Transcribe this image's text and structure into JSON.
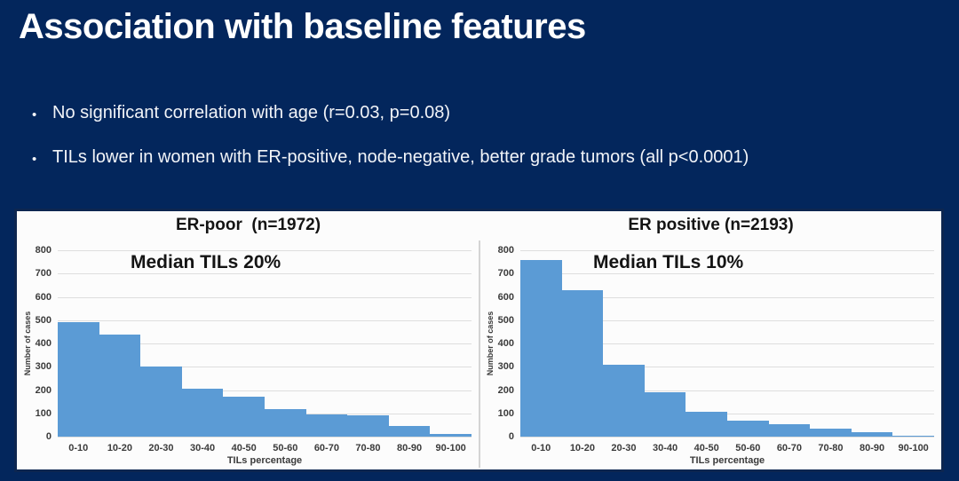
{
  "title": "Association with baseline features",
  "bullets": [
    "No significant correlation with age (r=0.03, p=0.08)",
    "TILs lower in women with ER-positive, node-negative, better grade tumors (all p<0.0001)"
  ],
  "colors": {
    "background": "#03265c",
    "panel_background": "#fcfcfc",
    "bar": "#5b9bd5",
    "gridline": "#dedede",
    "title_text": "#ffffff",
    "chart_text": "#141414"
  },
  "chart_data": [
    {
      "type": "bar",
      "title": "ER-poor  (n=1972)",
      "annotation": "Median TILs 20%",
      "categories": [
        "0-10",
        "10-20",
        "20-30",
        "30-40",
        "40-50",
        "50-60",
        "60-70",
        "70-80",
        "80-90",
        "90-100"
      ],
      "values": [
        490,
        440,
        300,
        205,
        170,
        120,
        95,
        90,
        45,
        10
      ],
      "xlabel": "TILs percentage",
      "ylabel": "Number of cases",
      "ylim": [
        0,
        800
      ],
      "ytick_step": 100,
      "grid": true,
      "legend": "none"
    },
    {
      "type": "bar",
      "title": "ER positive (n=2193)",
      "annotation": "Median TILs 10%",
      "categories": [
        "0-10",
        "10-20",
        "20-30",
        "30-40",
        "40-50",
        "50-60",
        "60-70",
        "70-80",
        "80-90",
        "90-100"
      ],
      "values": [
        760,
        630,
        310,
        190,
        105,
        70,
        55,
        35,
        20,
        5
      ],
      "xlabel": "TILs percentage",
      "ylabel": "Number of cases",
      "ylim": [
        0,
        800
      ],
      "ytick_step": 100,
      "grid": true,
      "legend": "none"
    }
  ]
}
